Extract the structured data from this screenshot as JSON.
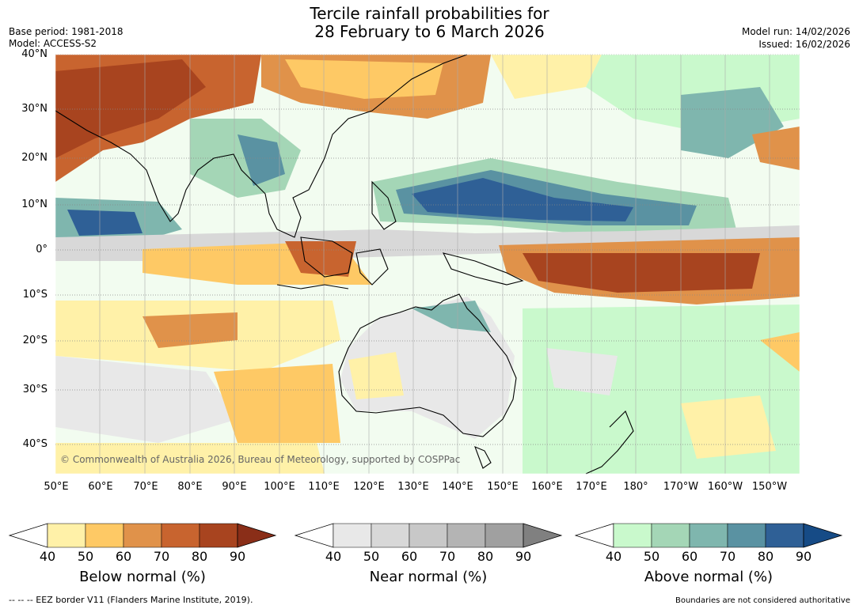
{
  "title_line1": "Tercile rainfall probabilities for",
  "title_line2": "28 February to 6 March 2026",
  "base_period": "Base period: 1981-2018",
  "model": "Model: ACCESS-S2",
  "model_run": "Model run: 14/02/2026",
  "issued": "Issued: 16/02/2026",
  "lat_labels": [
    "40°N",
    "30°N",
    "20°N",
    "10°N",
    "0°",
    "10°S",
    "20°S",
    "30°S",
    "40°S"
  ],
  "lon_labels": [
    "50°E",
    "60°E",
    "70°E",
    "80°E",
    "90°E",
    "100°E",
    "110°E",
    "120°E",
    "130°E",
    "140°E",
    "150°E",
    "160°E",
    "170°E",
    "180°",
    "170°W",
    "160°W",
    "150°W"
  ],
  "copyright": "© Commonwealth of Australia 2026, Bureau of Meteorology, supported by COSPPac",
  "colorbars": [
    {
      "title": "Below normal (%)",
      "ticks": [
        "40",
        "50",
        "60",
        "70",
        "80",
        "90"
      ],
      "colors": [
        "#fff1a8",
        "#fec965",
        "#e0924a",
        "#c8642f",
        "#a8441f",
        "#8a2e18"
      ]
    },
    {
      "title": "Near normal (%)",
      "ticks": [
        "40",
        "50",
        "60",
        "70",
        "80",
        "90"
      ],
      "colors": [
        "#e8e8e8",
        "#d8d8d8",
        "#c8c8c8",
        "#b4b4b4",
        "#a0a0a0",
        "#808080"
      ]
    },
    {
      "title": "Above normal (%)",
      "ticks": [
        "40",
        "50",
        "60",
        "70",
        "80",
        "90"
      ],
      "colors": [
        "#c9f9cc",
        "#a4d6b6",
        "#7fb6ae",
        "#5a92a2",
        "#2f6096",
        "#164b86"
      ]
    }
  ],
  "footer_left": "--  --  -- EEZ border V11 (Flanders Marine Institute, 2019).",
  "footer_right": "Boundaries are not considered authoritative"
}
